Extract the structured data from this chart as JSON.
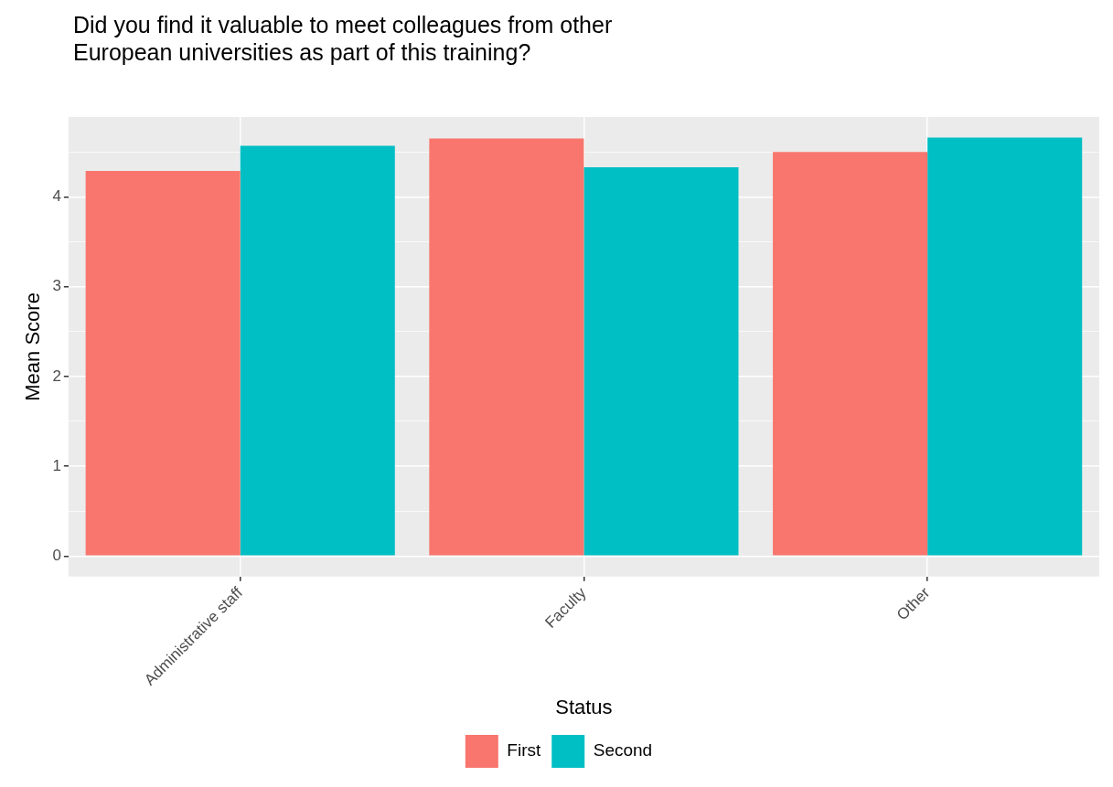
{
  "chart_data": {
    "type": "bar",
    "title": "Did you find it valuable to meet colleagues from other European universities as part of this training?",
    "xlabel": "Status",
    "ylabel": "Mean Score",
    "categories": [
      "Administrative staff",
      "Faculty",
      "Other"
    ],
    "series": [
      {
        "name": "First",
        "color": "#f8766d",
        "values": [
          4.29,
          4.65,
          4.5
        ]
      },
      {
        "name": "Second",
        "color": "#00bfc4",
        "values": [
          4.57,
          4.33,
          4.66
        ]
      }
    ],
    "ylim": [
      -0.23,
      4.89
    ],
    "yticks": [
      0,
      {
        "value": 0.5,
        "label": null
      },
      1,
      {
        "value": 1.5,
        "label": null
      },
      2,
      {
        "value": 2.5,
        "label": null
      },
      3,
      {
        "value": 3.5,
        "label": null
      },
      4,
      {
        "value": 4.5,
        "label": null
      }
    ],
    "grid": true,
    "legend": "bottom"
  }
}
